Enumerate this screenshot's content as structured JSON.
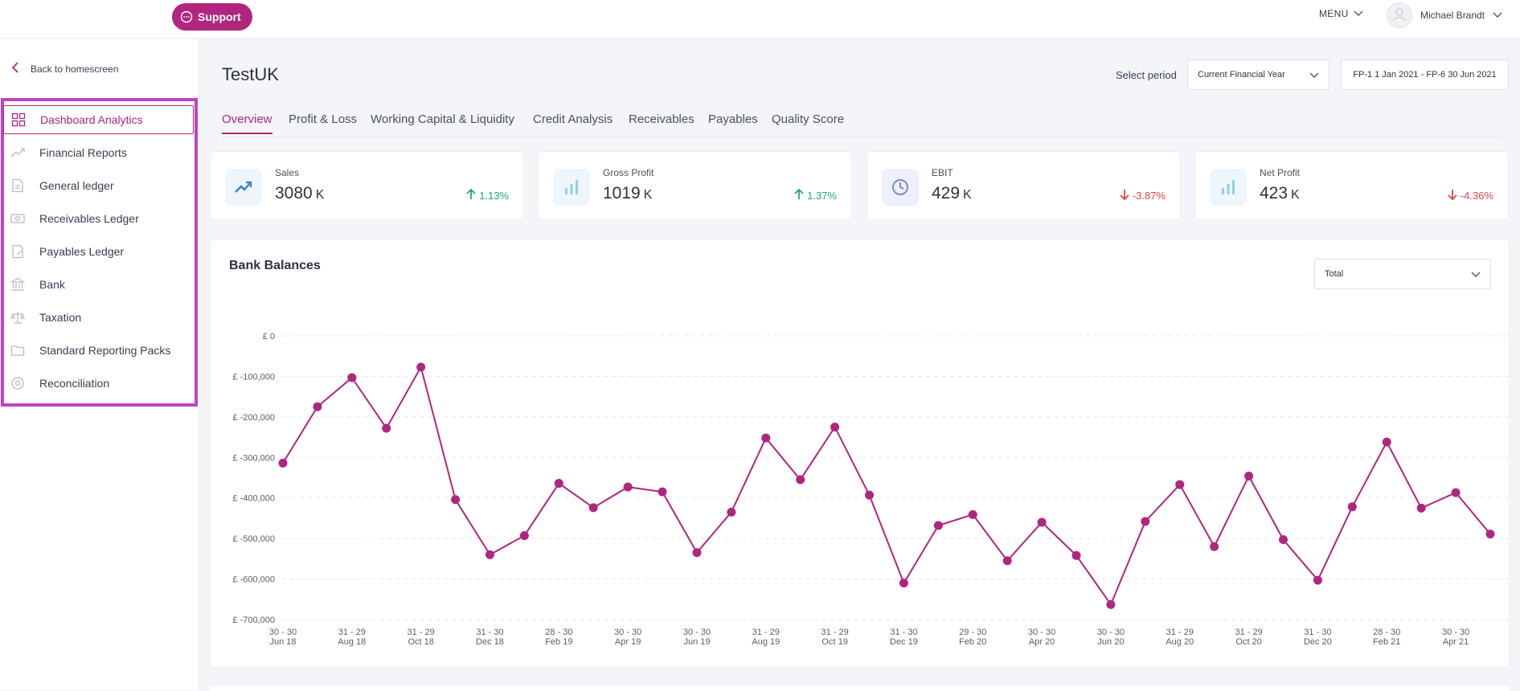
{
  "header": {
    "support_label": "Support",
    "menu_label": "MENU",
    "user_name": "Michael Brandt"
  },
  "sidebar": {
    "back_label": "Back to homescreen",
    "items": [
      {
        "label": "Dashboard Analytics",
        "icon": "grid-icon",
        "active": true
      },
      {
        "label": "Financial Reports",
        "icon": "trend-icon"
      },
      {
        "label": "General ledger",
        "icon": "document-icon"
      },
      {
        "label": "Receivables Ledger",
        "icon": "cash-icon"
      },
      {
        "label": "Payables Ledger",
        "icon": "invoice-icon"
      },
      {
        "label": "Bank",
        "icon": "bank-icon"
      },
      {
        "label": "Taxation",
        "icon": "scales-icon"
      },
      {
        "label": "Standard Reporting Packs",
        "icon": "folder-icon"
      },
      {
        "label": "Reconciliation",
        "icon": "target-icon"
      }
    ]
  },
  "main": {
    "title": "TestUK",
    "period_label": "Select period",
    "period_select": "Current Financial Year",
    "period_range": "FP-1 1 Jan 2021 - FP-6 30 Jun 2021",
    "tabs": [
      "Overview",
      "Profit & Loss",
      "Working Capital & Liquidity",
      "Credit Analysis",
      "Receivables",
      "Payables",
      "Quality Score"
    ],
    "active_tab": 0
  },
  "kpis": [
    {
      "label": "Sales",
      "value": "3080",
      "unit": "K",
      "delta": "1.13%",
      "direction": "up",
      "icon": "trend-up-icon"
    },
    {
      "label": "Gross Profit",
      "value": "1019",
      "unit": "K",
      "delta": "1.37%",
      "direction": "up",
      "icon": "bar-chart-icon"
    },
    {
      "label": "EBIT",
      "value": "429",
      "unit": "K",
      "delta": "-3.87%",
      "direction": "down",
      "icon": "clock-icon"
    },
    {
      "label": "Net Profit",
      "value": "423",
      "unit": "K",
      "delta": "-4.36%",
      "direction": "down",
      "icon": "bar-chart-icon"
    }
  ],
  "chart_select": "Total",
  "colors": {
    "accent": "#b0267f",
    "up": "#1fa878",
    "down": "#e0434a",
    "sidebar_highlight": "#c043c4"
  },
  "chart_data": {
    "type": "line",
    "title": "Bank Balances",
    "ylim": [
      -700000,
      0
    ],
    "yticks": [
      0,
      -100000,
      -200000,
      -300000,
      -400000,
      -500000,
      -600000,
      -700000
    ],
    "ytick_labels": [
      "£ 0",
      "£ -100,000",
      "£ -200,000",
      "£ -300,000",
      "£ -400,000",
      "£ -500,000",
      "£ -600,000",
      "£ -700,000"
    ],
    "xtick_labels": [
      [
        "30 - 30",
        "Jun 18"
      ],
      [
        "31 - 29",
        "Aug 18"
      ],
      [
        "31 - 29",
        "Oct 18"
      ],
      [
        "31 - 30",
        "Dec 18"
      ],
      [
        "28 - 30",
        "Feb 19"
      ],
      [
        "30 - 30",
        "Apr 19"
      ],
      [
        "30 - 30",
        "Jun 19"
      ],
      [
        "31 - 29",
        "Aug 19"
      ],
      [
        "31 - 29",
        "Oct 19"
      ],
      [
        "31 - 30",
        "Dec 19"
      ],
      [
        "29 - 30",
        "Feb 20"
      ],
      [
        "30 - 30",
        "Apr 20"
      ],
      [
        "30 - 30",
        "Jun 20"
      ],
      [
        "31 - 29",
        "Aug 20"
      ],
      [
        "31 - 29",
        "Oct 20"
      ],
      [
        "31 - 30",
        "Dec 20"
      ],
      [
        "28 - 30",
        "Feb 21"
      ],
      [
        "30 - 30",
        "Apr 21"
      ]
    ],
    "grid": true,
    "series": [
      {
        "color": "#b0267f",
        "values": [
          -314000,
          -175000,
          -103000,
          -228000,
          -77000,
          -404000,
          -540000,
          -493000,
          -364000,
          -424000,
          -373000,
          -385000,
          -535000,
          -435000,
          -252000,
          -355000,
          -225000,
          -393000,
          -610000,
          -468000,
          -441000,
          -555000,
          -460000,
          -542000,
          -663000,
          -458000,
          -367000,
          -520000,
          -346000,
          -503000,
          -603000,
          -422000,
          -262000,
          -425000,
          -387000,
          -489000
        ]
      }
    ]
  }
}
